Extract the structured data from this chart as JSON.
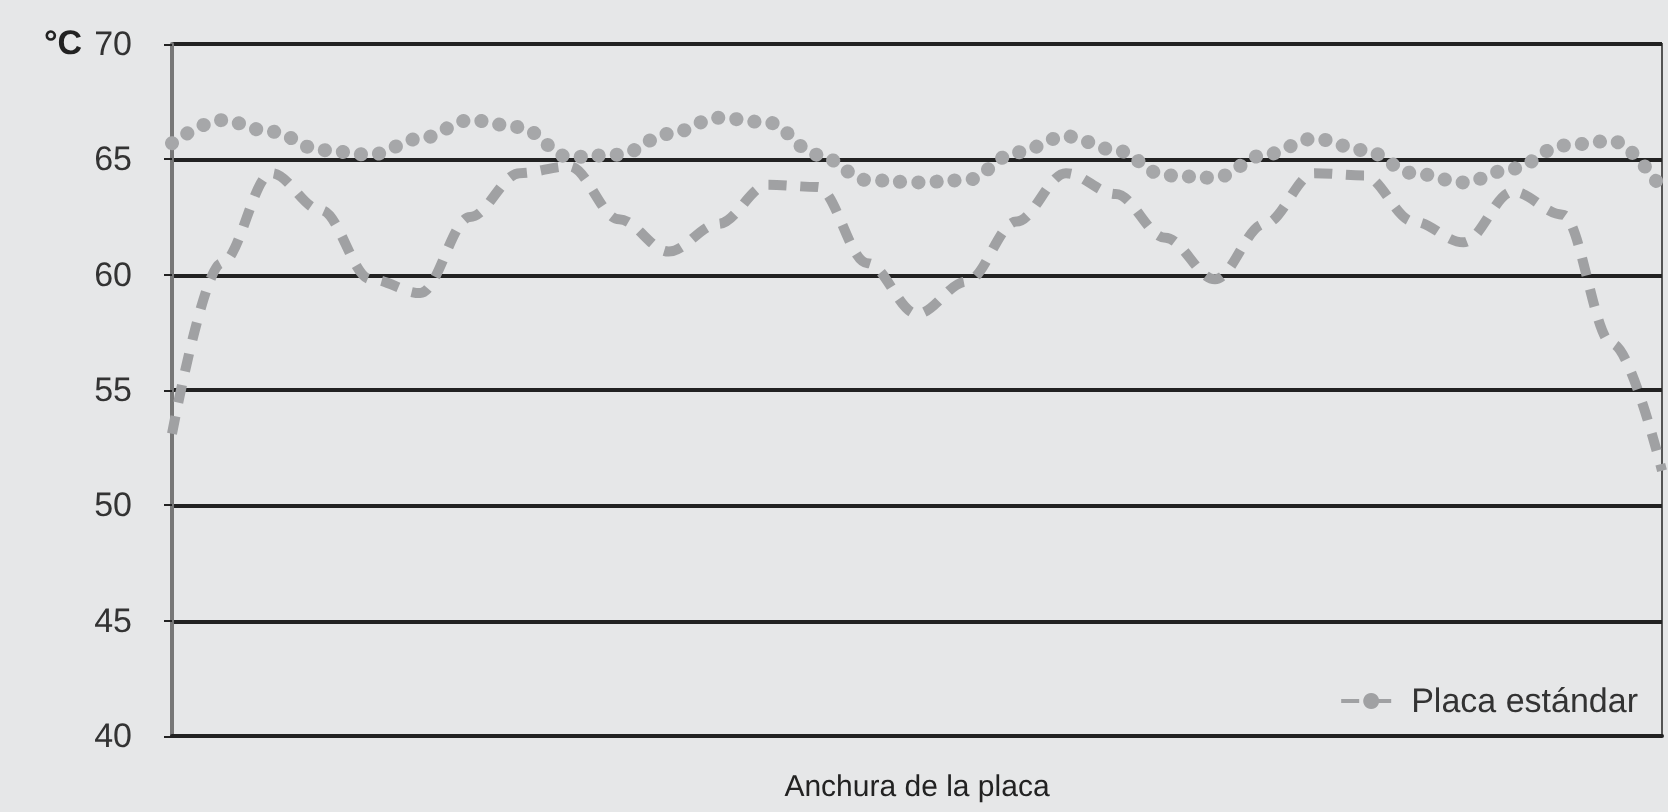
{
  "chart_data": {
    "type": "line",
    "xlabel": "Anchura de la placa",
    "ylabel": "°C",
    "categories": [
      null,
      null,
      null,
      null,
      null,
      null,
      null,
      null,
      null,
      null,
      null,
      null,
      null,
      null,
      null,
      null,
      null,
      null,
      null,
      null,
      null,
      null,
      null,
      null,
      null,
      null,
      null,
      null,
      null,
      null,
      null
    ],
    "series": [
      {
        "name": "Placa estándar",
        "color": "#a0a1a3",
        "line_style": "dashed",
        "values": [
          53.1,
          60.5,
          64.4,
          62.8,
          59.8,
          59.2,
          62.5,
          64.4,
          64.7,
          62.4,
          61.0,
          62.2,
          63.9,
          63.8,
          60.5,
          58.3,
          59.7,
          62.3,
          64.4,
          63.5,
          61.6,
          59.8,
          62.2,
          64.4,
          64.3,
          62.3,
          61.4,
          63.6,
          62.6,
          57.0,
          51.5
        ]
      },
      {
        "color": "#a6a7a9",
        "line_style": "dotted",
        "values": [
          65.7,
          66.7,
          66.2,
          65.4,
          65.2,
          65.9,
          66.7,
          66.4,
          65.1,
          65.2,
          66.1,
          66.8,
          66.6,
          65.2,
          64.1,
          64.0,
          64.1,
          65.3,
          66.0,
          65.4,
          64.3,
          64.2,
          65.2,
          65.9,
          65.4,
          64.4,
          64.0,
          64.6,
          65.6,
          65.8,
          63.7
        ]
      }
    ],
    "ylim": [
      40,
      70
    ],
    "yticks": [
      40,
      45,
      50,
      55,
      60,
      65,
      70
    ],
    "grid": "y",
    "legend": "bottom right",
    "marker": "none"
  }
}
